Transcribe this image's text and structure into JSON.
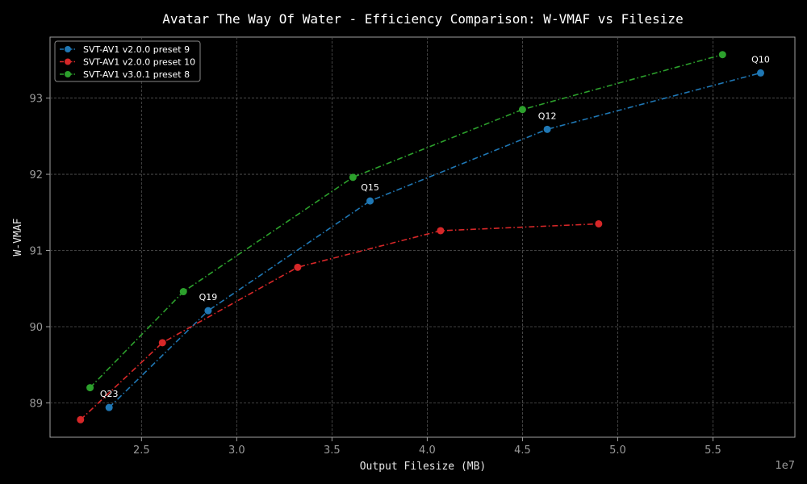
{
  "chart_data": {
    "type": "line",
    "title": "Avatar The Way Of Water - Efficiency Comparison: W-VMAF vs Filesize",
    "xlabel": "Output Filesize (MB)",
    "ylabel": "W-VMAF",
    "x_offset_label": "1e7",
    "xlim": [
      2.02,
      5.93
    ],
    "ylim": [
      88.55,
      93.8
    ],
    "x_ticks": [
      2.5,
      3.0,
      3.5,
      4.0,
      4.5,
      5.0,
      5.5
    ],
    "x_tick_labels": [
      "2.5",
      "3.0",
      "3.5",
      "4.0",
      "4.5",
      "5.0",
      "5.5"
    ],
    "y_ticks": [
      89,
      90,
      91,
      92,
      93
    ],
    "y_tick_labels": [
      "89",
      "90",
      "91",
      "92",
      "93"
    ],
    "grid": true,
    "legend_position": "top-left",
    "series": [
      {
        "name": "SVT-AV1 v2.0.0 preset 9",
        "color": "#1f77b4",
        "x": [
          2.33,
          2.85,
          3.7,
          4.63,
          5.75
        ],
        "y": [
          88.94,
          90.21,
          91.65,
          92.59,
          93.33
        ]
      },
      {
        "name": "SVT-AV1 v2.0.0 preset 10",
        "color": "#d62728",
        "x": [
          2.18,
          2.61,
          3.32,
          4.07,
          4.9
        ],
        "y": [
          88.78,
          89.79,
          90.78,
          91.26,
          91.35
        ]
      },
      {
        "name": "SVT-AV1 v3.0.1 preset 8",
        "color": "#2ca02c",
        "x": [
          2.23,
          2.72,
          3.61,
          4.5,
          5.55
        ],
        "y": [
          89.2,
          90.46,
          91.96,
          92.85,
          93.57
        ]
      }
    ],
    "annotations": [
      {
        "text": "Q23",
        "x": 2.33,
        "y": 88.94
      },
      {
        "text": "Q19",
        "x": 2.85,
        "y": 90.21
      },
      {
        "text": "Q15",
        "x": 3.7,
        "y": 91.65
      },
      {
        "text": "Q12",
        "x": 4.63,
        "y": 92.59
      },
      {
        "text": "Q10",
        "x": 5.75,
        "y": 93.33
      }
    ]
  }
}
